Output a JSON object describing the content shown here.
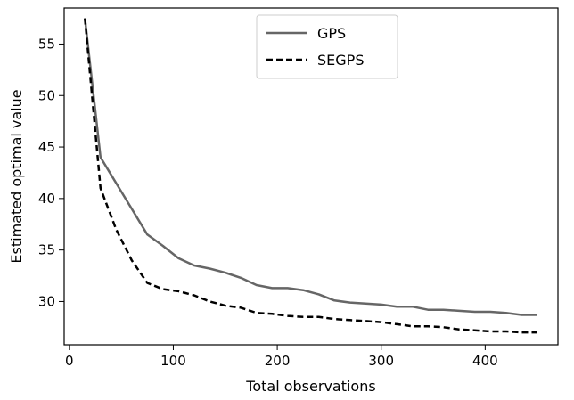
{
  "chart_data": {
    "type": "line",
    "title": "",
    "xlabel": "Total observations",
    "ylabel": "Estimated optimal value",
    "xlim": [
      -5,
      470
    ],
    "ylim": [
      25.8,
      58.5
    ],
    "xticks": [
      0,
      100,
      200,
      300,
      400
    ],
    "yticks": [
      30,
      35,
      40,
      45,
      50,
      55
    ],
    "grid": false,
    "legend_position": "top-center",
    "series": [
      {
        "name": "GPS",
        "style": "solid",
        "color": "#666666",
        "points": [
          [
            15,
            57.5
          ],
          [
            30,
            44.0
          ],
          [
            45,
            41.5
          ],
          [
            60,
            39.0
          ],
          [
            75,
            36.5
          ],
          [
            90,
            35.4
          ],
          [
            105,
            34.2
          ],
          [
            120,
            33.5
          ],
          [
            135,
            33.2
          ],
          [
            150,
            32.8
          ],
          [
            165,
            32.3
          ],
          [
            180,
            31.6
          ],
          [
            195,
            31.3
          ],
          [
            210,
            31.3
          ],
          [
            225,
            31.1
          ],
          [
            240,
            30.7
          ],
          [
            255,
            30.1
          ],
          [
            270,
            29.9
          ],
          [
            285,
            29.8
          ],
          [
            300,
            29.7
          ],
          [
            315,
            29.5
          ],
          [
            330,
            29.5
          ],
          [
            345,
            29.2
          ],
          [
            360,
            29.2
          ],
          [
            375,
            29.1
          ],
          [
            390,
            29.0
          ],
          [
            405,
            29.0
          ],
          [
            420,
            28.9
          ],
          [
            435,
            28.7
          ],
          [
            450,
            28.7
          ]
        ]
      },
      {
        "name": "SEGPS",
        "style": "dashed",
        "color": "#000000",
        "points": [
          [
            15,
            57.5
          ],
          [
            30,
            41.0
          ],
          [
            45,
            37.0
          ],
          [
            60,
            34.0
          ],
          [
            75,
            31.8
          ],
          [
            90,
            31.2
          ],
          [
            105,
            31.0
          ],
          [
            120,
            30.6
          ],
          [
            135,
            30.0
          ],
          [
            150,
            29.6
          ],
          [
            165,
            29.4
          ],
          [
            180,
            28.9
          ],
          [
            195,
            28.8
          ],
          [
            210,
            28.6
          ],
          [
            225,
            28.5
          ],
          [
            240,
            28.5
          ],
          [
            255,
            28.3
          ],
          [
            270,
            28.2
          ],
          [
            285,
            28.1
          ],
          [
            300,
            28.0
          ],
          [
            315,
            27.8
          ],
          [
            330,
            27.6
          ],
          [
            345,
            27.6
          ],
          [
            360,
            27.5
          ],
          [
            375,
            27.3
          ],
          [
            390,
            27.2
          ],
          [
            405,
            27.1
          ],
          [
            420,
            27.1
          ],
          [
            435,
            27.0
          ],
          [
            450,
            27.0
          ]
        ]
      }
    ]
  }
}
